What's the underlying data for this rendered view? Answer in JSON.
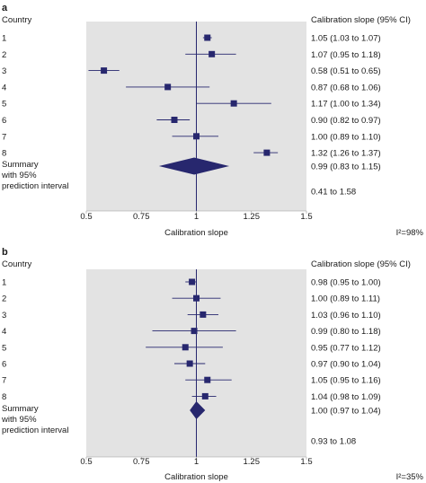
{
  "chart_data": [
    {
      "type": "forest",
      "panel_label": "a",
      "row_header": "Country",
      "ci_header": "Calibration slope (95% CI)",
      "xlabel": "Calibration slope",
      "xlim": [
        0.5,
        1.5
      ],
      "xticks": [
        0.5,
        0.75,
        1,
        1.25,
        1.5
      ],
      "xtick_labels": [
        "0.5",
        "0.75",
        "1",
        "1.25",
        "1.5"
      ],
      "reference_line": 1,
      "heterogeneity": "I²=98%",
      "studies": [
        {
          "label": "1",
          "estimate": 1.05,
          "lower": 1.03,
          "upper": 1.07,
          "ci_text": "1.05 (1.03 to 1.07)"
        },
        {
          "label": "2",
          "estimate": 1.07,
          "lower": 0.95,
          "upper": 1.18,
          "ci_text": "1.07 (0.95 to 1.18)"
        },
        {
          "label": "3",
          "estimate": 0.58,
          "lower": 0.51,
          "upper": 0.65,
          "ci_text": "0.58 (0.51 to 0.65)"
        },
        {
          "label": "4",
          "estimate": 0.87,
          "lower": 0.68,
          "upper": 1.06,
          "ci_text": "0.87 (0.68 to 1.06)"
        },
        {
          "label": "5",
          "estimate": 1.17,
          "lower": 1.0,
          "upper": 1.34,
          "ci_text": "1.17 (1.00 to 1.34)"
        },
        {
          "label": "6",
          "estimate": 0.9,
          "lower": 0.82,
          "upper": 0.97,
          "ci_text": "0.90 (0.82 to 0.97)"
        },
        {
          "label": "7",
          "estimate": 1.0,
          "lower": 0.89,
          "upper": 1.1,
          "ci_text": "1.00 (0.89 to 1.10)"
        },
        {
          "label": "8",
          "estimate": 1.32,
          "lower": 1.26,
          "upper": 1.37,
          "ci_text": "1.32 (1.26 to 1.37)"
        }
      ],
      "summary": {
        "label_lines": [
          "Summary",
          "with 95%",
          "prediction interval"
        ],
        "estimate": 0.99,
        "lower": 0.83,
        "upper": 1.15,
        "ci_text": "0.99 (0.83 to 1.15)",
        "pi_lower": 0.41,
        "pi_upper": 1.58,
        "pi_text": "0.41 to 1.58"
      }
    },
    {
      "type": "forest",
      "panel_label": "b",
      "row_header": "Country",
      "ci_header": "Calibration slope (95% CI)",
      "xlabel": "Calibration slope",
      "xlim": [
        0.5,
        1.5
      ],
      "xticks": [
        0.5,
        0.75,
        1,
        1.25,
        1.5
      ],
      "xtick_labels": [
        "0.5",
        "0.75",
        "1",
        "1.25",
        "1.5"
      ],
      "reference_line": 1,
      "heterogeneity": "I²=35%",
      "studies": [
        {
          "label": "1",
          "estimate": 0.98,
          "lower": 0.95,
          "upper": 1.0,
          "ci_text": "0.98 (0.95 to 1.00)"
        },
        {
          "label": "2",
          "estimate": 1.0,
          "lower": 0.89,
          "upper": 1.11,
          "ci_text": "1.00 (0.89 to 1.11)"
        },
        {
          "label": "3",
          "estimate": 1.03,
          "lower": 0.96,
          "upper": 1.1,
          "ci_text": "1.03 (0.96 to 1.10)"
        },
        {
          "label": "4",
          "estimate": 0.99,
          "lower": 0.8,
          "upper": 1.18,
          "ci_text": "0.99 (0.80 to 1.18)"
        },
        {
          "label": "5",
          "estimate": 0.95,
          "lower": 0.77,
          "upper": 1.12,
          "ci_text": "0.95 (0.77 to 1.12)"
        },
        {
          "label": "6",
          "estimate": 0.97,
          "lower": 0.9,
          "upper": 1.04,
          "ci_text": "0.97 (0.90 to 1.04)"
        },
        {
          "label": "7",
          "estimate": 1.05,
          "lower": 0.95,
          "upper": 1.16,
          "ci_text": "1.05 (0.95 to 1.16)"
        },
        {
          "label": "8",
          "estimate": 1.04,
          "lower": 0.98,
          "upper": 1.09,
          "ci_text": "1.04 (0.98 to 1.09)"
        }
      ],
      "summary": {
        "label_lines": [
          "Summary",
          "with 95%",
          "prediction interval"
        ],
        "estimate": 1.0,
        "lower": 0.97,
        "upper": 1.04,
        "ci_text": "1.00 (0.97 to 1.04)",
        "pi_lower": 0.93,
        "pi_upper": 1.08,
        "pi_text": "0.93 to 1.08"
      }
    }
  ],
  "colors": {
    "plot_background": "#e3e3e3",
    "marker": "#27276e",
    "lines": "#27276e",
    "text": "#1a1a1a"
  }
}
